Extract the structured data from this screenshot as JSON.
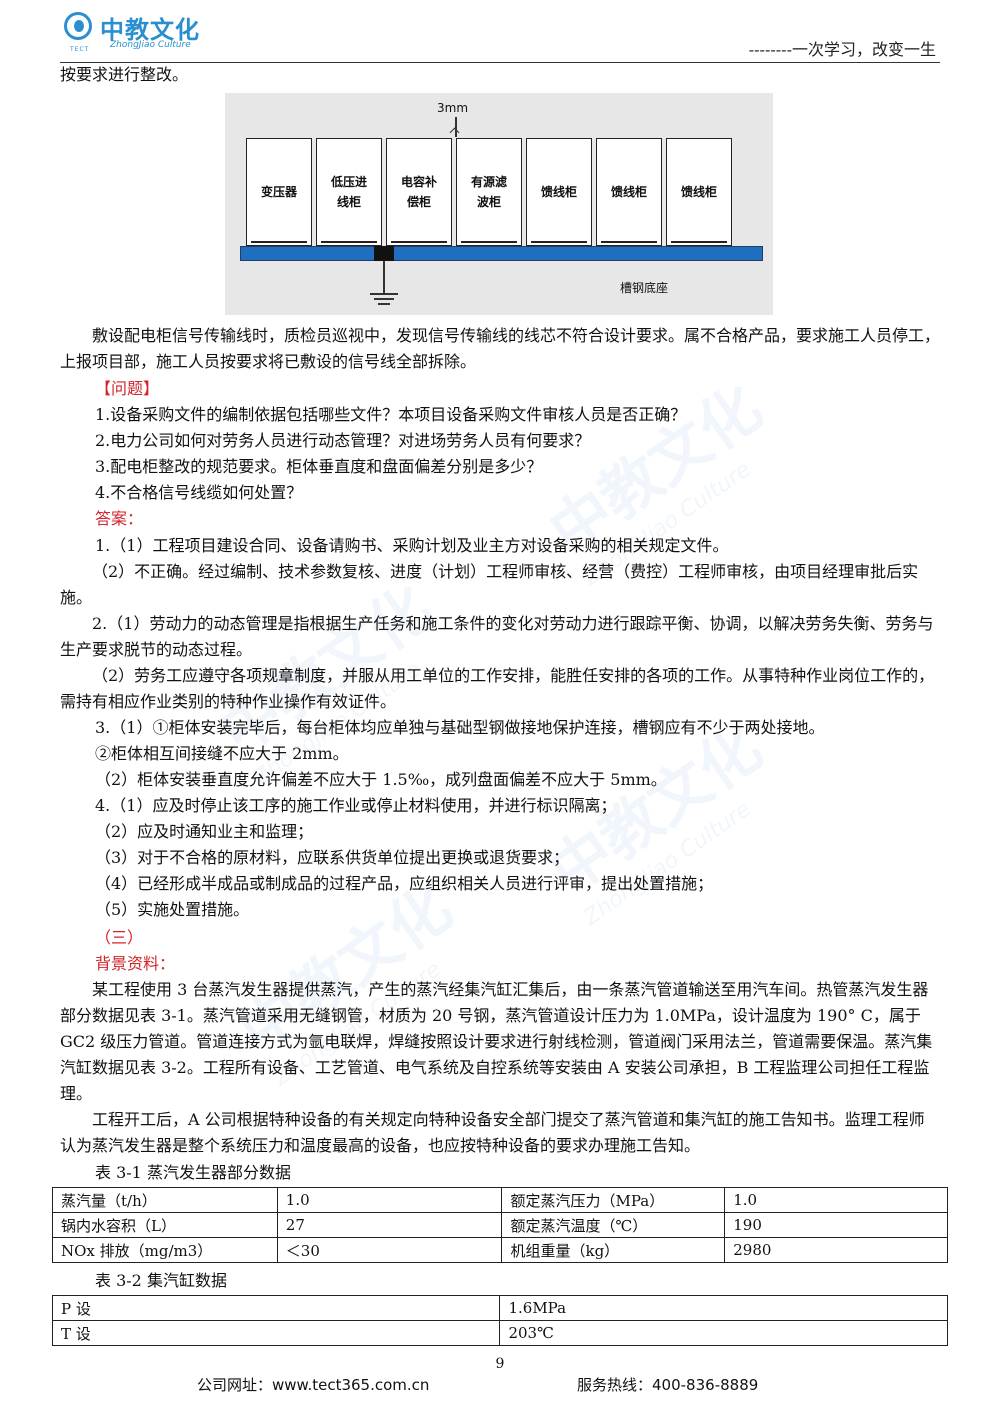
{
  "header": {
    "logo_cn": "中教文化",
    "logo_en": "ZhongJiao Culture",
    "logo_tect": "TECT",
    "slogan": "--------一次学习，改变一生"
  },
  "intro": "按要求进行整改。",
  "figure": {
    "dimension_label": "3mm",
    "base_label": "槽钢底座",
    "cabinets": [
      [
        "变压器"
      ],
      [
        "低压进",
        "线柜"
      ],
      [
        "电容补",
        "偿柜"
      ],
      [
        "有源滤",
        "波柜"
      ],
      [
        "馈线柜"
      ],
      [
        "馈线柜"
      ],
      [
        "馈线柜"
      ]
    ]
  },
  "background_para": "敷设配电柜信号传输线时，质检员巡视中，发现信号传输线的线芯不符合设计要求。属不合格产品，要求施工人员停工，上报项目部，施工人员按要求将已敷设的信号线全部拆除。",
  "questions_label": "【问题】",
  "questions": [
    "1.设备采购文件的编制依据包括哪些文件？本项目设备采购文件审核人员是否正确？",
    "2.电力公司如何对劳务人员进行动态管理？对进场劳务人员有何要求？",
    "3.配电柜整改的规范要求。柜体垂直度和盘面偏差分别是多少？",
    "4.不合格信号线缆如何处置？"
  ],
  "answers_label": "答案：",
  "answers": [
    "1.（1）工程项目建设合同、设备请购书、采购计划及业主方对设备采购的相关规定文件。",
    "（2）不正确。经过编制、技术参数复核、进度（计划）工程师审核、经营（费控）工程师审核，由项目经理审批后实施。",
    "2.（1）劳动力的动态管理是指根据生产任务和施工条件的变化对劳动力进行跟踪平衡、协调，以解决劳务失衡、劳务与生产要求脱节的动态过程。",
    "（2）劳务工应遵守各项规章制度，并服从用工单位的工作安排，能胜任安排的各项的工作。从事特种作业岗位工作的，需持有相应作业类别的特种作业操作有效证件。",
    "3.（1）①柜体安装完毕后，每台柜体均应单独与基础型钢做接地保护连接，槽钢应有不少于两处接地。",
    "②柜体相互间接缝不应大于 2mm。",
    "（2）柜体安装垂直度允许偏差不应大于 1.5‰，成列盘面偏差不应大于 5mm。",
    "4.（1）应及时停止该工序的施工作业或停止材料使用，并进行标识隔离；",
    "（2）应及时通知业主和监理；",
    "（3）对于不合格的原材料，应联系供货单位提出更换或退货要求；",
    "（4）已经形成半成品或制成品的过程产品，应组织相关人员进行评审，提出处置措施；",
    "（5）实施处置措施。"
  ],
  "section_label": "（三）",
  "bg_label": "背景资料：",
  "case_para1": "某工程使用 3 台蒸汽发生器提供蒸汽，产生的蒸汽经集汽缸汇集后，由一条蒸汽管道输送至用汽车间。热管蒸汽发生器部分数据见表 3-1。蒸汽管道采用无缝钢管，材质为 20 号钢，蒸汽管道设计压力为 1.0MPa，设计温度为 190° C，属于 GC2 级压力管道。管道连接方式为氩电联焊，焊缝按照设计要求进行射线检测，管道阀门采用法兰，管道需要保温。蒸汽集汽缸数据见表 3-2。工程所有设备、工艺管道、电气系统及自控系统等安装由 A 安装公司承担，B 工程监理公司担任工程监理。",
  "case_para2": "工程开工后，A 公司根据特种设备的有关规定向特种设备安全部门提交了蒸汽管道和集汽缸的施工告知书。监理工程师认为蒸汽发生器是整个系统压力和温度最高的设备，也应按特种设备的要求办理施工告知。",
  "table1": {
    "caption": "表 3-1 蒸汽发生器部分数据",
    "rows": [
      [
        "蒸汽量（t/h）",
        "1.0",
        "额定蒸汽压力（MPa）",
        "1.0"
      ],
      [
        "锅内水容积（L）",
        "27",
        "额定蒸汽温度（℃）",
        "190"
      ],
      [
        "NOx 排放（mg/m3）",
        "＜30",
        "机组重量（kg）",
        "2980"
      ]
    ]
  },
  "table2": {
    "caption": "表 3-2 集汽缸数据",
    "rows": [
      [
        "P 设",
        "1.6MPa"
      ],
      [
        "T 设",
        "203℃"
      ]
    ]
  },
  "page_number": "9",
  "footer": {
    "site_label": "公司网址：",
    "site": "www.tect365.com.cn",
    "tel_label": "服务热线：",
    "tel": "400-836-8889"
  },
  "watermark": {
    "cn": "中教文化",
    "en": "ZhongJiao Culture"
  },
  "colors": {
    "accent_red": "#d2232a",
    "brand_blue": "#2a8fd0",
    "base_blue": "#1f6fc1"
  }
}
